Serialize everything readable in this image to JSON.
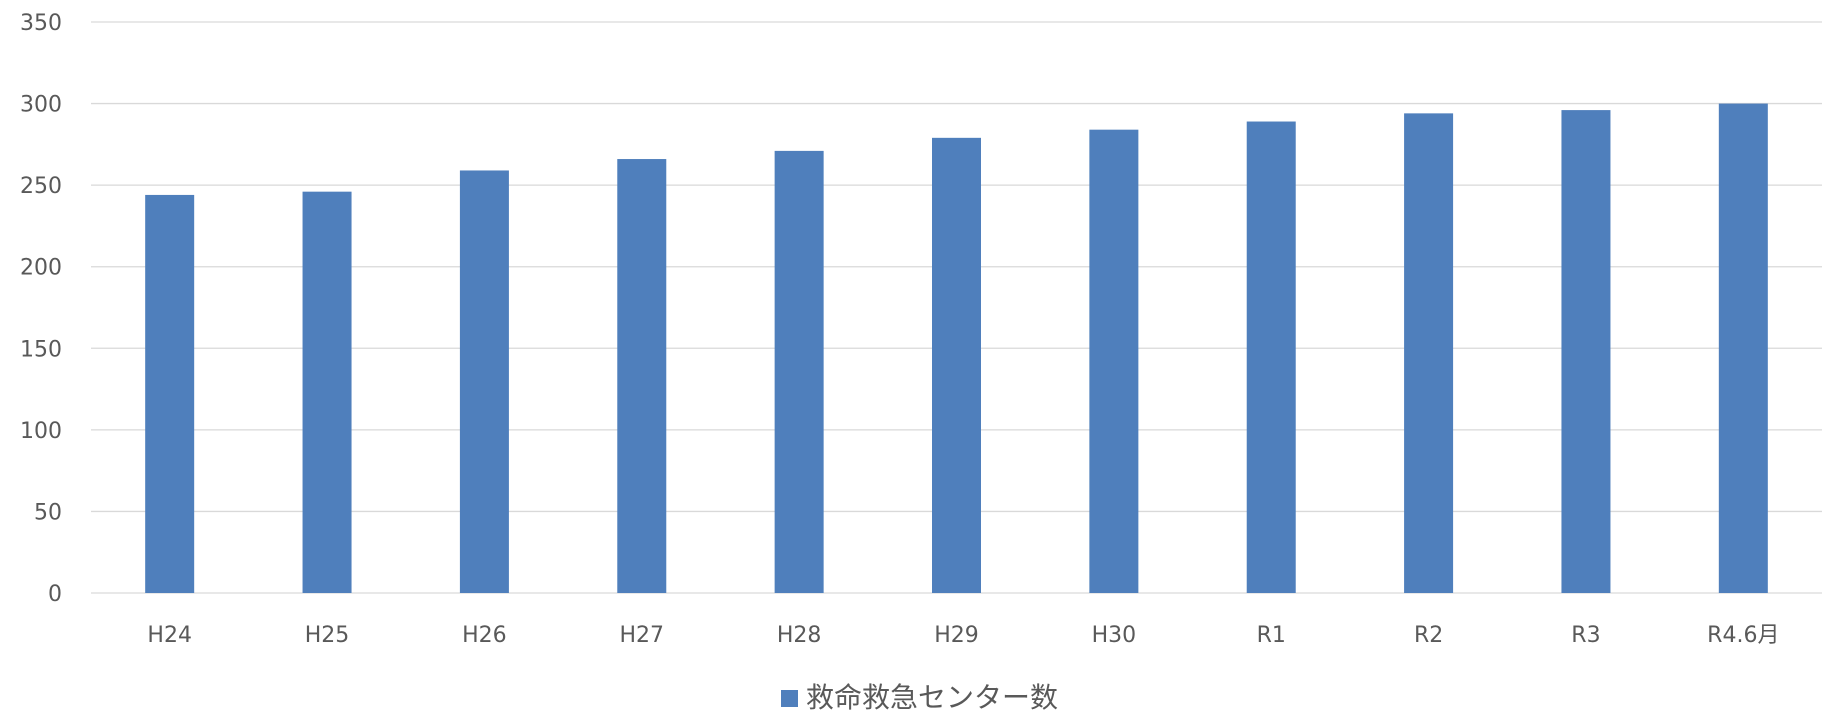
{
  "chart_data": {
    "type": "bar",
    "title": "",
    "xlabel": "",
    "ylabel": "",
    "categories": [
      "H24",
      "H25",
      "H26",
      "H27",
      "H28",
      "H29",
      "H30",
      "R1",
      "R2",
      "R3",
      "R4.6月"
    ],
    "series": [
      {
        "name": "救命救急センター数",
        "color": "#4f7fbc",
        "values": [
          244,
          246,
          259,
          266,
          271,
          279,
          284,
          289,
          294,
          296,
          300
        ]
      }
    ],
    "ylim": [
      0,
      350
    ],
    "yticks": [
      0,
      50,
      100,
      150,
      200,
      250,
      300,
      350
    ],
    "grid": true,
    "legend_position": "bottom"
  },
  "legend": {
    "label": "救命救急センター数",
    "color": "#4f7fbc"
  }
}
